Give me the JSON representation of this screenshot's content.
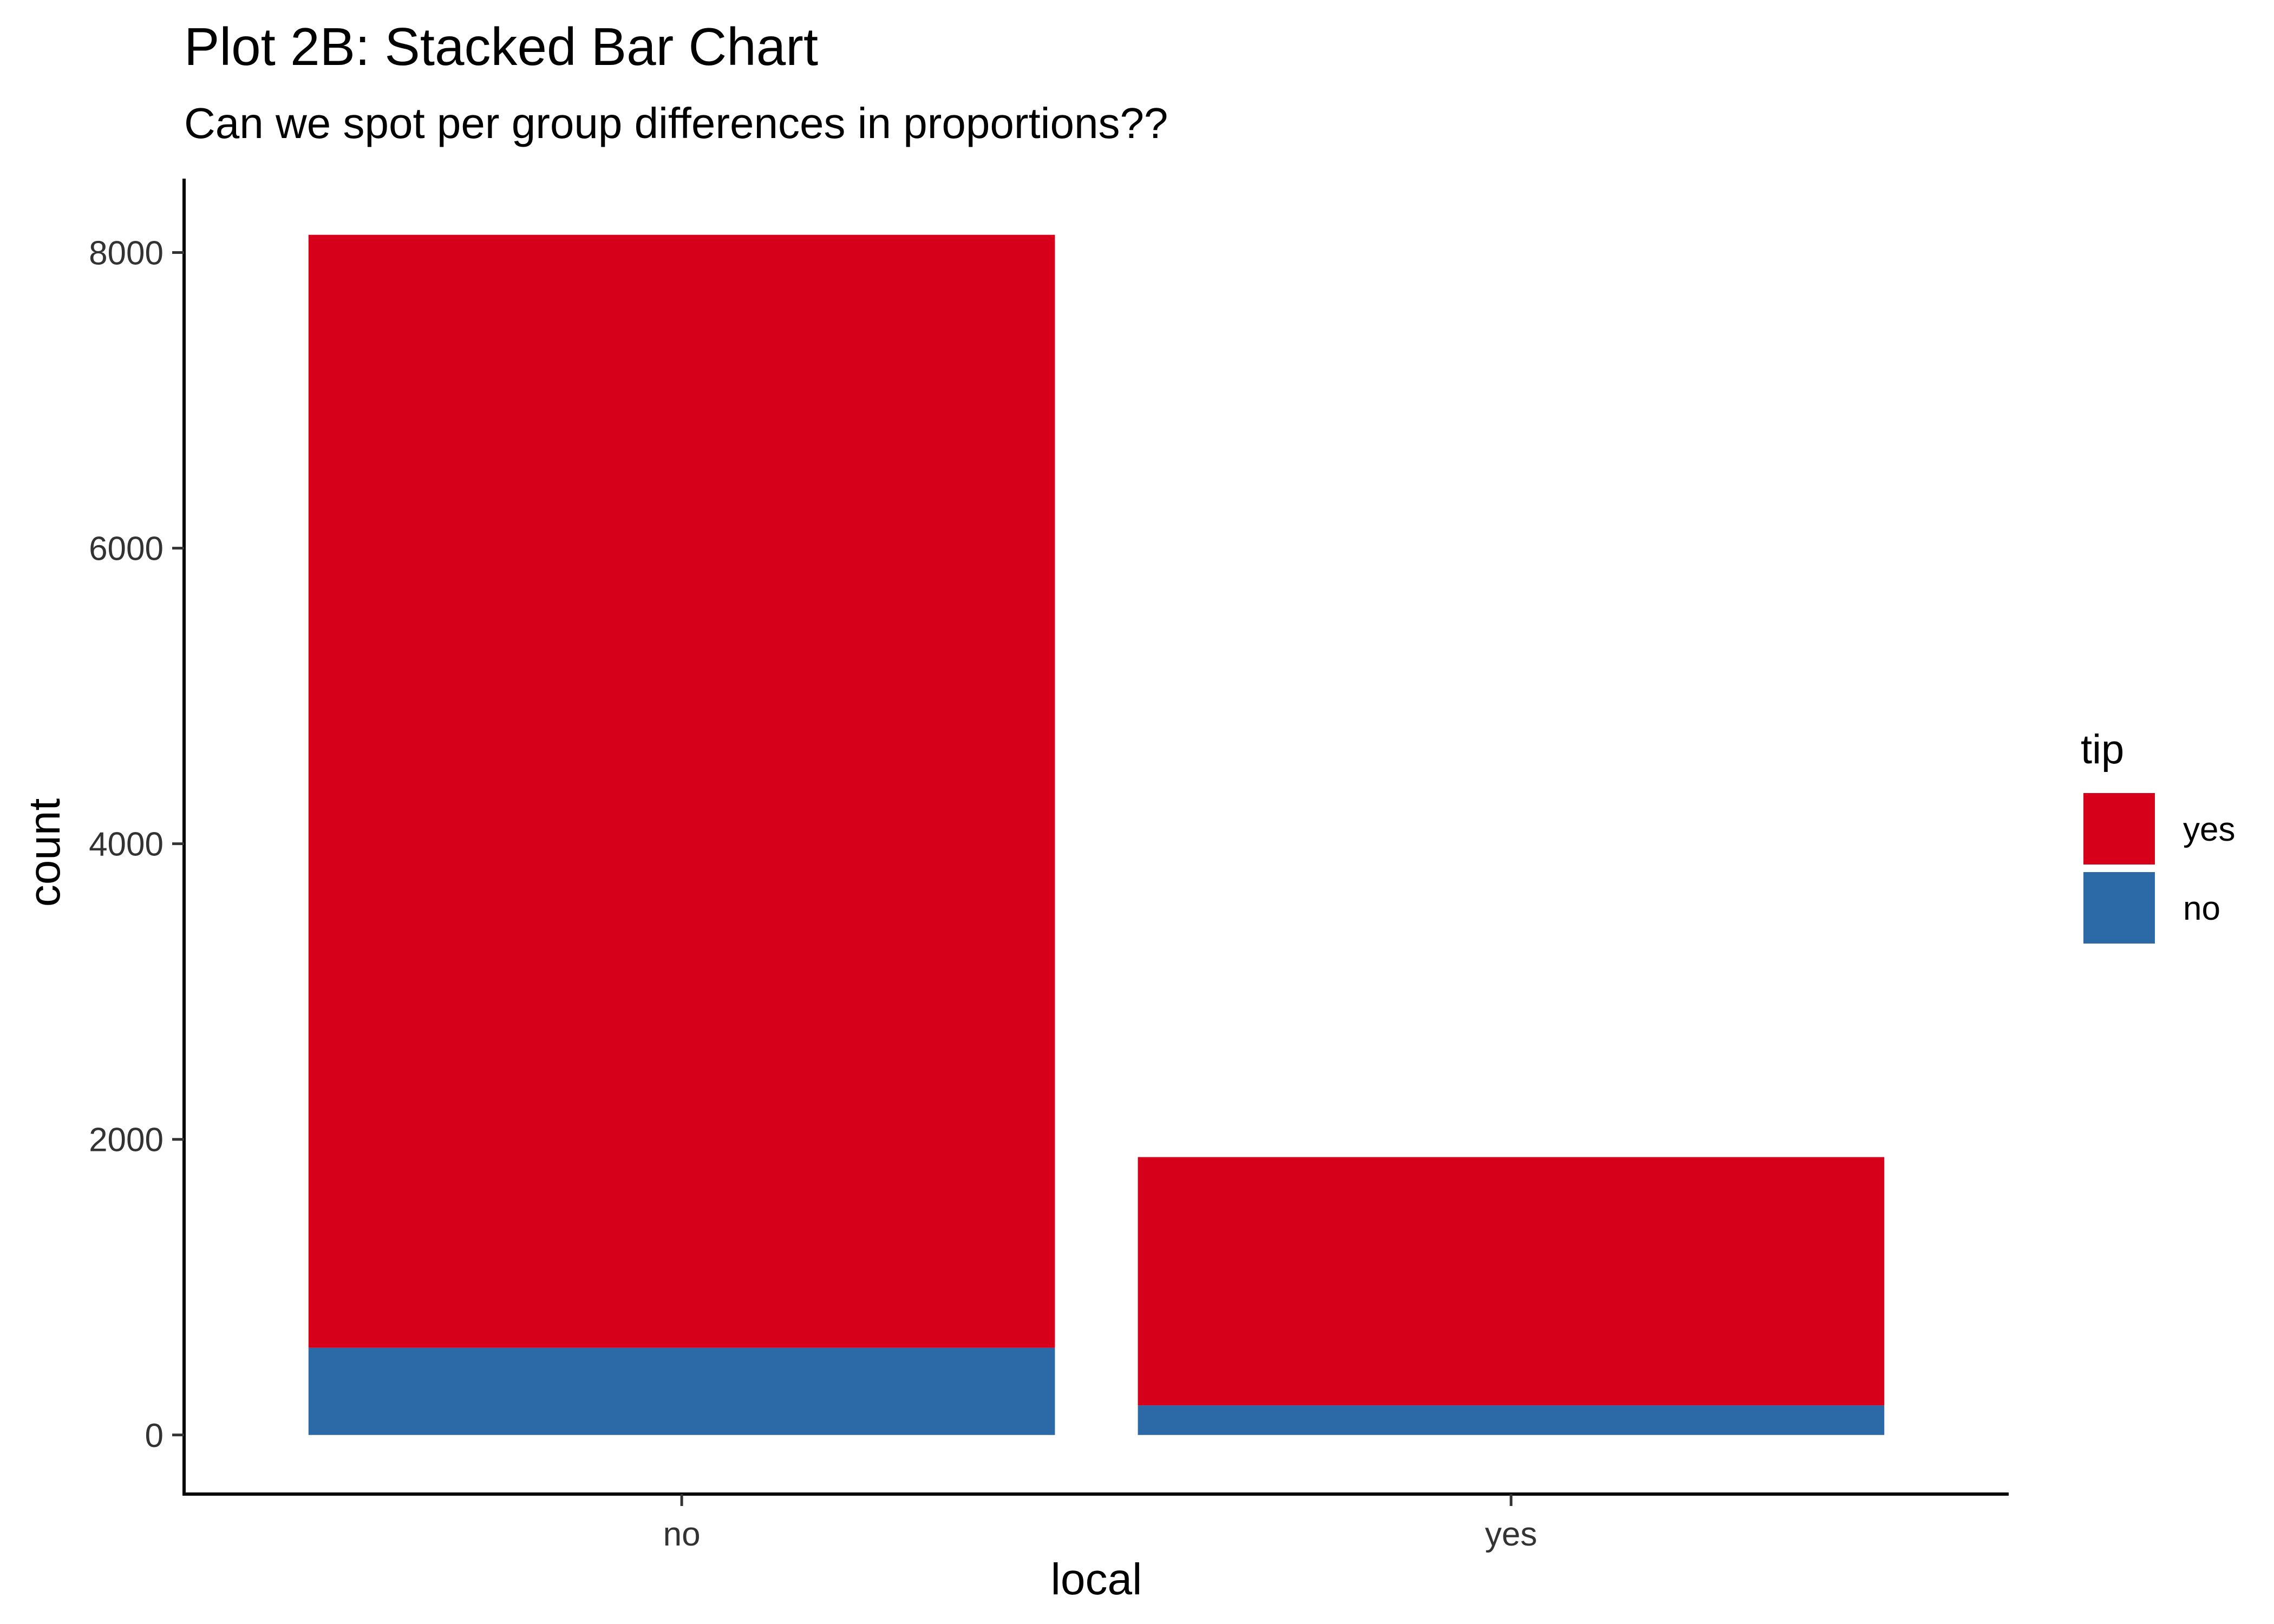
{
  "chart_data": {
    "type": "bar",
    "stacked": true,
    "title": "Plot 2B: Stacked Bar Chart",
    "subtitle": "Can we spot per group differences in proportions??",
    "xlabel": "local",
    "ylabel": "count",
    "categories": [
      "no",
      "yes"
    ],
    "series": [
      {
        "name": "no",
        "values": [
          590,
          200
        ],
        "color": "#2C69A7"
      },
      {
        "name": "yes",
        "values": [
          7530,
          1680
        ],
        "color": "#D7001A"
      }
    ],
    "ylim": [
      -400,
      8500
    ],
    "yticks": [
      0,
      2000,
      4000,
      6000,
      8000
    ],
    "ytick_labels": [
      "0",
      "2000",
      "4000",
      "6000",
      "8000"
    ],
    "grid": false,
    "legend": {
      "title": "tip",
      "placement": "right",
      "entries": [
        {
          "label": "yes",
          "color": "#D7001A"
        },
        {
          "label": "no",
          "color": "#2C69A7"
        }
      ]
    }
  }
}
